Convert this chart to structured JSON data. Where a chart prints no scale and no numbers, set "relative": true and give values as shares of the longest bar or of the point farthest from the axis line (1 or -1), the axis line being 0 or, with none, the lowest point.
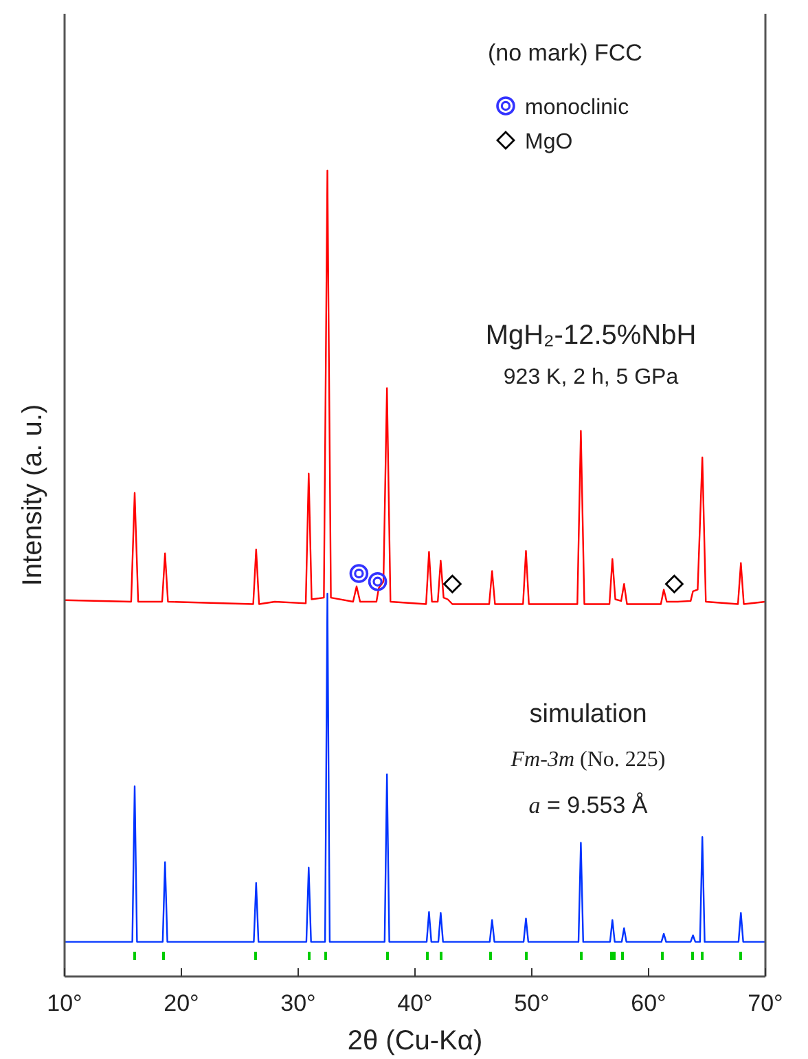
{
  "chart_data": {
    "type": "line",
    "relative": true,
    "xlabel": "2θ (Cu-Kα)",
    "ylabel": "Intensity (a. u.)",
    "legend_title": "(no mark) FCC",
    "legend": "top right",
    "xlim": [
      10,
      70
    ],
    "xticks": [
      {
        "value": 10,
        "label": "10°"
      },
      {
        "value": 20,
        "label": "20°"
      },
      {
        "value": 30,
        "label": "30°"
      },
      {
        "value": 40,
        "label": "40°"
      },
      {
        "value": 50,
        "label": "50°"
      },
      {
        "value": 60,
        "label": "60°"
      },
      {
        "value": 70,
        "label": "70°"
      }
    ],
    "annotations": [
      "MgH₂-12.5%NbH",
      "923 K, 2 h, 5 GPa",
      "simulation",
      "Fm-3m (No. 225)",
      "a = 9.553 Å"
    ],
    "series": [
      {
        "color": "#ff0000",
        "x": [
          10,
          15.7,
          16.0,
          16.3,
          18.35,
          18.6,
          18.85,
          26.15,
          26.4,
          26.65,
          28,
          30.65,
          30.9,
          31.15,
          32.2,
          32.5,
          32.8,
          34.7,
          35.0,
          35.3,
          36.7,
          36.9,
          37.3,
          37.6,
          37.9,
          40.95,
          41.2,
          41.45,
          41.95,
          42.2,
          42.45,
          42.8,
          43.2,
          46.35,
          46.6,
          46.85,
          49.25,
          49.5,
          49.75,
          53.9,
          54.2,
          54.5,
          56.65,
          56.9,
          57.15,
          57.65,
          57.9,
          58.15,
          61.05,
          61.3,
          61.55,
          62.5,
          63.6,
          63.8,
          64.2,
          64.6,
          64.9,
          67.65,
          67.9,
          68.15,
          70
        ],
        "values": [
          0.467,
          0.465,
          0.6,
          0.465,
          0.465,
          0.525,
          0.465,
          0.462,
          0.53,
          0.462,
          0.465,
          0.463,
          0.624,
          0.468,
          0.47,
          1.0,
          0.47,
          0.465,
          0.484,
          0.465,
          0.465,
          0.482,
          0.49,
          0.73,
          0.465,
          0.462,
          0.527,
          0.465,
          0.465,
          0.516,
          0.47,
          0.468,
          0.462,
          0.462,
          0.503,
          0.462,
          0.462,
          0.528,
          0.462,
          0.462,
          0.677,
          0.462,
          0.462,
          0.518,
          0.468,
          0.466,
          0.487,
          0.462,
          0.462,
          0.48,
          0.465,
          0.465,
          0.466,
          0.478,
          0.48,
          0.644,
          0.465,
          0.462,
          0.513,
          0.462,
          0.465
        ]
      },
      {
        "color": "#0033ff",
        "x": [
          10,
          15.8,
          16.0,
          16.2,
          18.4,
          18.6,
          18.8,
          26.2,
          26.4,
          26.6,
          30.7,
          30.9,
          31.1,
          32.3,
          32.5,
          32.7,
          37.4,
          37.6,
          37.8,
          41.0,
          41.2,
          41.4,
          42.0,
          42.2,
          42.4,
          46.4,
          46.6,
          46.8,
          49.3,
          49.5,
          49.7,
          54.0,
          54.2,
          54.4,
          56.7,
          56.9,
          57.1,
          57.7,
          57.9,
          58.1,
          61.1,
          61.3,
          61.5,
          63.6,
          63.8,
          64.0,
          64.4,
          64.6,
          64.8,
          67.7,
          67.9,
          68.1,
          70
        ],
        "values": [
          0.043,
          0.043,
          0.236,
          0.043,
          0.043,
          0.142,
          0.043,
          0.043,
          0.116,
          0.043,
          0.043,
          0.135,
          0.043,
          0.043,
          0.475,
          0.043,
          0.043,
          0.251,
          0.043,
          0.043,
          0.08,
          0.043,
          0.043,
          0.079,
          0.043,
          0.043,
          0.07,
          0.043,
          0.043,
          0.072,
          0.043,
          0.043,
          0.166,
          0.043,
          0.043,
          0.07,
          0.043,
          0.043,
          0.06,
          0.043,
          0.043,
          0.053,
          0.043,
          0.043,
          0.051,
          0.043,
          0.043,
          0.173,
          0.043,
          0.043,
          0.079,
          0.043,
          0.043
        ]
      },
      {
        "type": "scatter",
        "color": "#00cc00",
        "x": [
          16.0,
          18.5,
          26.3,
          30.9,
          32.4,
          37.6,
          41.1,
          42.2,
          46.5,
          49.5,
          54.2,
          56.8,
          57.1,
          57.8,
          61.2,
          63.8,
          64.6,
          67.9
        ],
        "values": [
          0.025,
          0.025,
          0.025,
          0.025,
          0.025,
          0.025,
          0.025,
          0.025,
          0.025,
          0.025,
          0.025,
          0.025,
          0.025,
          0.025,
          0.025,
          0.025,
          0.025,
          0.025
        ]
      },
      {
        "type": "scatter",
        "name": "monoclinic",
        "color": "#3333ff",
        "marker": "circle",
        "x": [
          35.2,
          36.8
        ],
        "values": [
          0.5,
          0.49
        ]
      },
      {
        "type": "scatter",
        "name": "MgO",
        "color": "#000000",
        "marker": "diamond",
        "x": [
          43.2,
          62.2
        ],
        "values": [
          0.487,
          0.487
        ]
      }
    ]
  }
}
